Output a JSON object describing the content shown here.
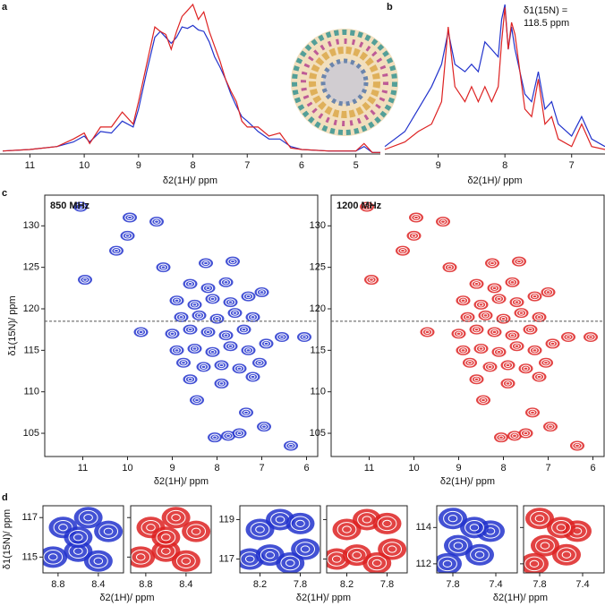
{
  "chart_data": [
    {
      "type": "line",
      "panel": "a",
      "xlabel": "δ2(1H)/ ppm",
      "x": [
        11.5,
        11.0,
        10.5,
        10.2,
        10.0,
        9.9,
        9.7,
        9.5,
        9.3,
        9.1,
        9.0,
        8.85,
        8.7,
        8.6,
        8.5,
        8.4,
        8.3,
        8.2,
        8.1,
        8.0,
        7.9,
        7.8,
        7.7,
        7.6,
        7.5,
        7.4,
        7.3,
        7.2,
        7.1,
        7.0,
        6.8,
        6.6,
        6.4,
        6.2,
        6.0,
        5.5,
        5.0,
        4.85,
        4.7,
        4.55
      ],
      "series": [
        {
          "color": "#2233cc",
          "values": [
            0.02,
            0.03,
            0.05,
            0.08,
            0.12,
            0.08,
            0.15,
            0.14,
            0.22,
            0.18,
            0.3,
            0.55,
            0.78,
            0.82,
            0.78,
            0.74,
            0.78,
            0.85,
            0.84,
            0.86,
            0.83,
            0.82,
            0.75,
            0.65,
            0.58,
            0.5,
            0.4,
            0.32,
            0.25,
            0.22,
            0.15,
            0.1,
            0.1,
            0.05,
            0.03,
            0.02,
            0.02,
            0.05,
            0.01,
            0.01
          ]
        },
        {
          "color": "#dd2222",
          "values": [
            0.02,
            0.03,
            0.05,
            0.1,
            0.14,
            0.07,
            0.18,
            0.18,
            0.28,
            0.2,
            0.35,
            0.6,
            0.85,
            0.82,
            0.8,
            0.7,
            0.82,
            0.92,
            0.96,
            1.0,
            0.9,
            0.95,
            0.82,
            0.72,
            0.62,
            0.5,
            0.42,
            0.35,
            0.22,
            0.18,
            0.18,
            0.12,
            0.14,
            0.04,
            0.03,
            0.02,
            0.02,
            0.07,
            0.01,
            0.01
          ]
        }
      ],
      "xlim": [
        11.55,
        4.55
      ],
      "ylim": [
        0,
        1
      ],
      "xticks": [
        11,
        10,
        9,
        8,
        7,
        6,
        5
      ]
    },
    {
      "type": "line",
      "panel": "b",
      "xlabel": "δ2(1H)/ ppm",
      "annotation": [
        "δ1(15N) =",
        "118.5 ppm"
      ],
      "x": [
        9.8,
        9.5,
        9.3,
        9.1,
        8.95,
        8.85,
        8.75,
        8.6,
        8.5,
        8.4,
        8.3,
        8.2,
        8.1,
        8.05,
        8.0,
        7.95,
        7.9,
        7.85,
        7.7,
        7.6,
        7.5,
        7.4,
        7.3,
        7.2,
        7.0,
        6.85,
        6.7,
        6.5
      ],
      "series": [
        {
          "color": "#2233cc",
          "values": [
            0.05,
            0.15,
            0.3,
            0.45,
            0.6,
            0.82,
            0.6,
            0.55,
            0.6,
            0.55,
            0.75,
            0.7,
            0.65,
            0.9,
            1.0,
            0.7,
            0.85,
            0.7,
            0.4,
            0.35,
            0.55,
            0.3,
            0.35,
            0.2,
            0.12,
            0.25,
            0.1,
            0.05
          ]
        },
        {
          "color": "#dd2222",
          "values": [
            0.03,
            0.08,
            0.15,
            0.2,
            0.35,
            0.85,
            0.45,
            0.35,
            0.45,
            0.35,
            0.45,
            0.35,
            0.45,
            0.75,
            0.98,
            0.7,
            0.88,
            0.8,
            0.3,
            0.25,
            0.5,
            0.2,
            0.25,
            0.1,
            0.05,
            0.2,
            0.05,
            0.03
          ]
        }
      ],
      "xlim": [
        9.8,
        6.5
      ],
      "ylim": [
        0,
        1
      ],
      "xticks": [
        9,
        8,
        7
      ]
    },
    {
      "type": "scatter",
      "panel": "c",
      "xlabel": "δ2(1H)/ ppm",
      "ylabel": "δ1(15N)/ ppm",
      "hline": 118.5,
      "series": [
        {
          "name": "850 MHz",
          "color": "#2233cc",
          "x": [
            8.05,
            7.75,
            7.5,
            6.35,
            6.95,
            8.45,
            7.35,
            8.6,
            7.9,
            7.2,
            8.75,
            8.3,
            7.9,
            7.5,
            7.05,
            8.9,
            8.5,
            8.1,
            7.7,
            7.3,
            6.9,
            9.0,
            8.6,
            8.2,
            7.8,
            7.4,
            9.7,
            8.8,
            8.4,
            8.0,
            7.6,
            7.2,
            8.9,
            8.5,
            8.1,
            7.7,
            7.3,
            8.6,
            8.2,
            7.8,
            10.95,
            11.05,
            10.25,
            10.0,
            9.95,
            9.35,
            8.25,
            7.65,
            6.55,
            6.05,
            9.2,
            7.0
          ],
          "y": [
            104.5,
            104.7,
            105,
            103.5,
            105.8,
            109,
            107.5,
            111.5,
            111,
            111.8,
            113.5,
            113,
            113.2,
            112.8,
            113.5,
            115,
            115.2,
            114.8,
            115.5,
            115,
            115.8,
            117,
            117.5,
            117.2,
            116.8,
            117.5,
            117.2,
            119,
            119.2,
            118.8,
            119.5,
            119,
            121,
            120.5,
            121.2,
            120.8,
            121.5,
            123,
            122.5,
            123.2,
            123.5,
            132.3,
            127,
            128.8,
            131,
            130.5,
            125.5,
            125.7,
            116.6,
            116.6,
            125,
            122
          ]
        }
      ],
      "xlim": [
        11.85,
        5.75
      ],
      "ylim": [
        102.2,
        133.7
      ],
      "xticks": [
        11,
        10,
        9,
        8,
        7,
        6
      ],
      "yticks": [
        105,
        110,
        115,
        120,
        125,
        130
      ]
    },
    {
      "type": "scatter",
      "xlabel": "δ2(1H)/ ppm",
      "hline": 118.5,
      "series": [
        {
          "name": "1200 MHz",
          "color": "#dd2222",
          "x": [
            8.05,
            7.75,
            7.5,
            6.35,
            6.95,
            8.45,
            7.35,
            8.6,
            7.9,
            7.2,
            8.75,
            8.3,
            7.9,
            7.5,
            7.05,
            8.9,
            8.5,
            8.1,
            7.7,
            7.3,
            6.9,
            9.0,
            8.6,
            8.2,
            7.8,
            7.4,
            9.7,
            8.8,
            8.4,
            8.0,
            7.6,
            7.2,
            8.9,
            8.5,
            8.1,
            7.7,
            7.3,
            8.6,
            8.2,
            7.8,
            10.95,
            11.05,
            10.25,
            10.0,
            9.95,
            9.35,
            8.25,
            7.65,
            6.55,
            6.05,
            9.2,
            7.0
          ],
          "y": [
            104.5,
            104.7,
            105,
            103.5,
            105.8,
            109,
            107.5,
            111.5,
            111,
            111.8,
            113.5,
            113,
            113.2,
            112.8,
            113.5,
            115,
            115.2,
            114.8,
            115.5,
            115,
            115.8,
            117,
            117.5,
            117.2,
            116.8,
            117.5,
            117.2,
            119,
            119.2,
            118.8,
            119.5,
            119,
            121,
            120.5,
            121.2,
            120.8,
            121.5,
            123,
            122.5,
            123.2,
            123.5,
            132.3,
            127,
            128.8,
            131,
            130.5,
            125.5,
            125.7,
            116.6,
            116.6,
            125,
            122
          ]
        }
      ],
      "xlim": [
        11.85,
        5.75
      ],
      "ylim": [
        102.2,
        133.7
      ],
      "xticks": [
        11,
        10,
        9,
        8,
        7,
        6
      ],
      "yticks": [
        105,
        110,
        115,
        120,
        125,
        130
      ]
    },
    {
      "type": "scatter",
      "panel": "d",
      "xlabel": "δ2(1H)/ ppm",
      "ylabel": "δ1(15N)/ ppm",
      "series": [
        {
          "color": "#2233cc",
          "x": [
            8.85,
            8.6,
            8.4,
            8.75,
            8.5,
            8.3,
            8.6
          ],
          "y": [
            115.0,
            115.3,
            114.8,
            116.5,
            117.0,
            116.3,
            116.0
          ]
        },
        {
          "color": "#dd2222",
          "x": [
            8.85,
            8.6,
            8.4,
            8.75,
            8.5,
            8.3,
            8.6
          ],
          "y": [
            115.0,
            115.3,
            114.8,
            116.5,
            117.0,
            116.3,
            116.0
          ]
        }
      ],
      "xlim": [
        8.95,
        8.15
      ],
      "ylim": [
        114.2,
        117.6
      ],
      "xticks": [
        8.8,
        8.4
      ],
      "yticks": [
        115,
        117
      ]
    },
    {
      "type": "scatter",
      "xlabel": "δ2(1H)/ ppm",
      "series": [
        {
          "color": "#2233cc",
          "x": [
            8.3,
            8.1,
            7.9,
            7.75,
            8.2,
            8.0,
            7.8
          ],
          "y": [
            117.0,
            117.2,
            116.8,
            117.5,
            118.5,
            119.0,
            118.8
          ]
        },
        {
          "color": "#dd2222",
          "x": [
            8.3,
            8.1,
            7.9,
            7.75,
            8.2,
            8.0,
            7.8
          ],
          "y": [
            117.0,
            117.2,
            116.8,
            117.5,
            118.5,
            119.0,
            118.8
          ]
        }
      ],
      "xlim": [
        8.4,
        7.6
      ],
      "ylim": [
        116.3,
        119.7
      ],
      "xticks": [
        8.2,
        7.8
      ],
      "yticks": [
        117,
        119
      ]
    },
    {
      "type": "scatter",
      "xlabel": "δ2(1H)/ ppm",
      "series": [
        {
          "color": "#2233cc",
          "x": [
            7.85,
            7.75,
            7.55,
            7.45,
            7.8,
            7.6
          ],
          "y": [
            112.0,
            113.0,
            112.5,
            113.8,
            114.5,
            114.0
          ]
        },
        {
          "color": "#dd2222",
          "x": [
            7.85,
            7.75,
            7.55,
            7.45,
            7.8,
            7.6
          ],
          "y": [
            112.0,
            113.0,
            112.5,
            113.8,
            114.5,
            114.0
          ]
        }
      ],
      "xlim": [
        7.95,
        7.2
      ],
      "ylim": [
        111.5,
        115.2
      ],
      "xticks": [
        7.8,
        7.4
      ],
      "yticks": [
        112,
        114
      ]
    }
  ]
}
